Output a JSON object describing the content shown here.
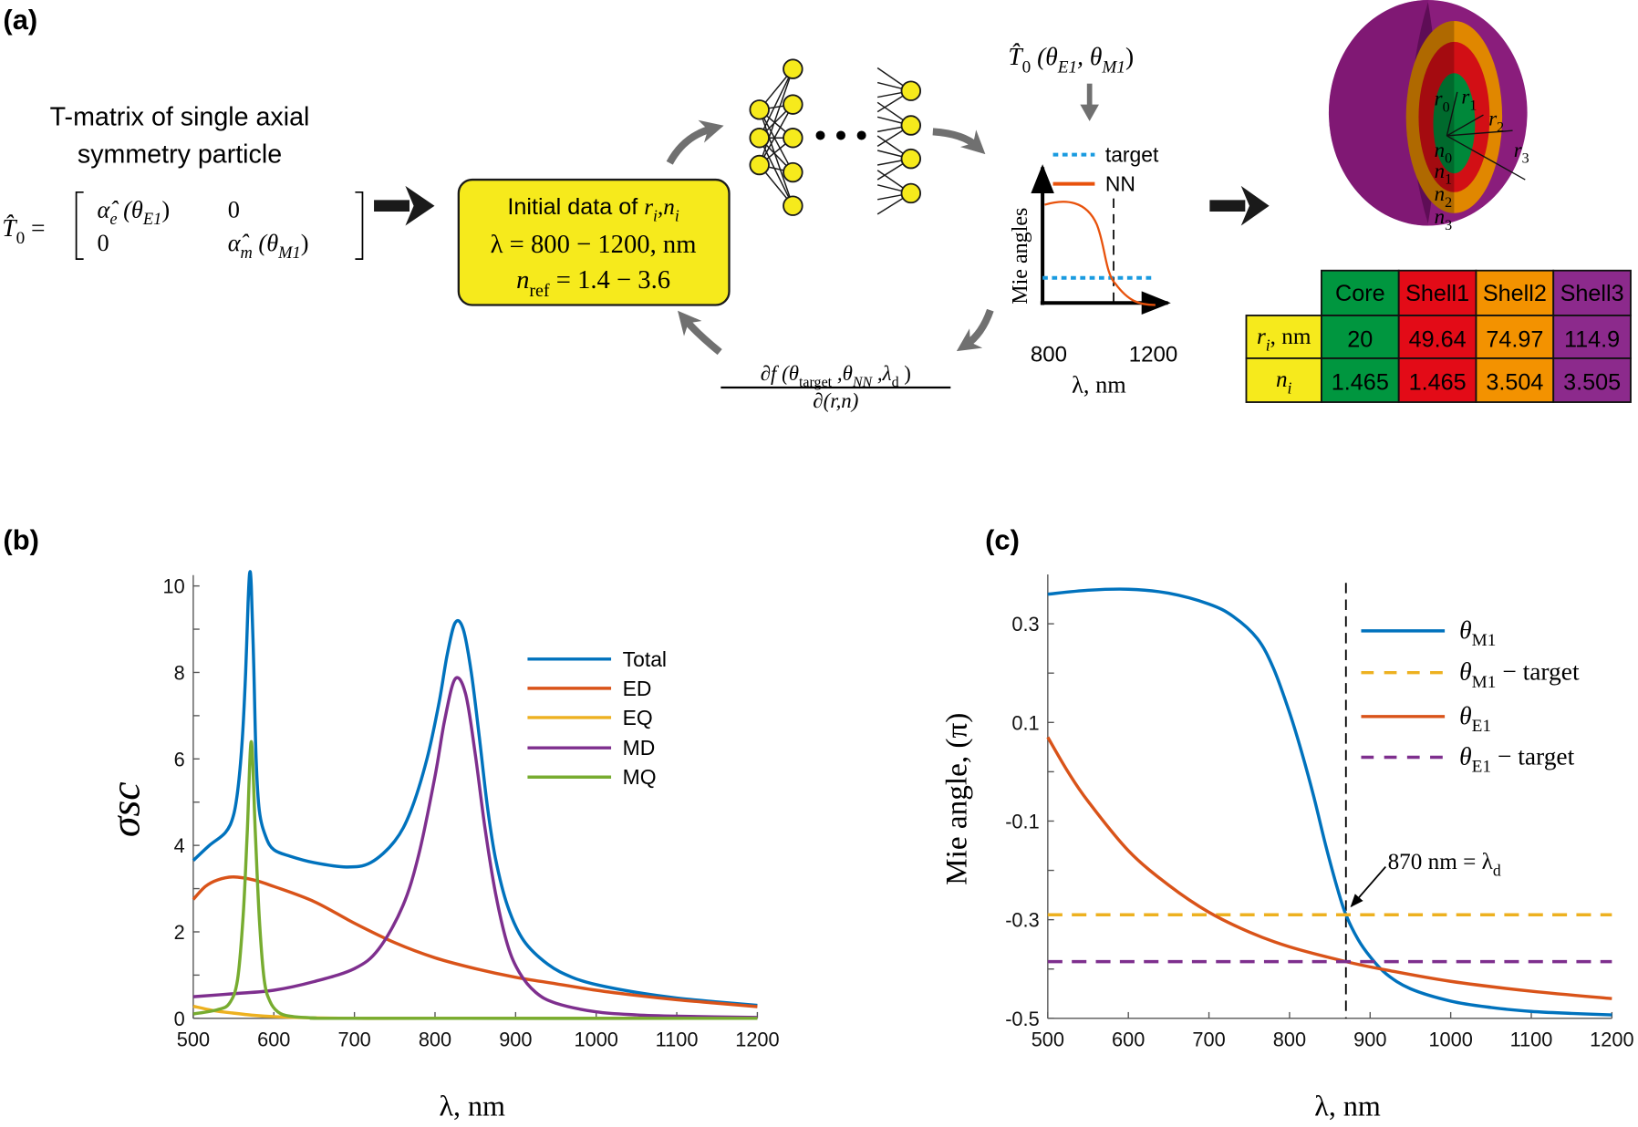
{
  "panel_labels": {
    "a": "(a)",
    "b": "(b)",
    "c": "(c)"
  },
  "panel_a": {
    "title_line1": "T-matrix of single axial",
    "title_line2": "symmetry particle",
    "matrix": {
      "lhs": [
        [
          "T̂",
          "it"
        ],
        [
          "0",
          "sub"
        ],
        [
          " =",
          "n"
        ]
      ],
      "a11": [
        [
          "α̂",
          "it"
        ],
        [
          "e",
          "subit"
        ],
        [
          " (θ",
          "it"
        ],
        [
          "E1",
          "subit"
        ],
        [
          ")",
          "n"
        ]
      ],
      "a12": [
        [
          "0",
          "n"
        ]
      ],
      "a21": [
        [
          "0",
          "n"
        ]
      ],
      "a22": [
        [
          "α̂",
          "it"
        ],
        [
          "m",
          "subit"
        ],
        [
          " (θ",
          "it"
        ],
        [
          "M1",
          "subit"
        ],
        [
          ")",
          "n"
        ]
      ]
    },
    "input_box": {
      "line1": [
        [
          "Initial data of ",
          "sans"
        ],
        [
          "r",
          "it"
        ],
        [
          "i",
          "subit"
        ],
        [
          ",",
          "n"
        ],
        [
          "n",
          "it"
        ],
        [
          "i",
          "subit"
        ]
      ],
      "line2": [
        [
          "λ = 800 − 1200, nm",
          "n"
        ]
      ],
      "line3": [
        [
          "n",
          "it"
        ],
        [
          "ref",
          "sub"
        ],
        [
          " = 1.4 − 3.6",
          "n"
        ]
      ],
      "color": "#f6ea1c"
    },
    "nn_ellipsis": "•••",
    "output_formula": [
      [
        "T̂",
        "it"
      ],
      [
        "0",
        "sub"
      ],
      [
        " (θ",
        "it"
      ],
      [
        "E1",
        "subit"
      ],
      [
        ", θ",
        "it"
      ],
      [
        "M1",
        "subit"
      ],
      [
        ")",
        "n"
      ]
    ],
    "gradient_numerator": [
      [
        "∂f (θ",
        "it"
      ],
      [
        "target",
        "sub"
      ],
      [
        " ,θ",
        "it"
      ],
      [
        "NN",
        "subit"
      ],
      [
        " ,λ",
        "it"
      ],
      [
        "d",
        "sub"
      ],
      [
        " )",
        "n"
      ]
    ],
    "gradient_denominator": [
      [
        "∂(r,n)",
        "it"
      ]
    ],
    "mini_plot": {
      "legend": [
        {
          "label": "target",
          "color": "#1a9be0",
          "style": "dotted"
        },
        {
          "label": "NN",
          "color": "#e8520c",
          "style": "solid"
        }
      ],
      "ylabel": "Mie angles",
      "x_ticks": [
        "800",
        "1200"
      ],
      "xlabel": "λ, nm"
    },
    "sphere_labels": {
      "r0": [
        [
          "r",
          "it"
        ],
        [
          "0",
          "sub"
        ]
      ],
      "r1": [
        [
          "r",
          "it"
        ],
        [
          "1",
          "sub"
        ]
      ],
      "r2": [
        [
          "r",
          "it"
        ],
        [
          "2",
          "sub"
        ]
      ],
      "r3": [
        [
          "r",
          "it"
        ],
        [
          "3",
          "sub"
        ]
      ],
      "n0": [
        [
          "n",
          "it"
        ],
        [
          "0",
          "sub"
        ]
      ],
      "n1": [
        [
          "n",
          "it"
        ],
        [
          "1",
          "sub"
        ]
      ],
      "n2": [
        [
          "n",
          "it"
        ],
        [
          "2",
          "sub"
        ]
      ],
      "n3": [
        [
          "n",
          "it"
        ],
        [
          "3",
          "sub"
        ]
      ]
    },
    "layer_colors": {
      "core": "#00963f",
      "shell1": "#e30b17",
      "shell2": "#f39200",
      "shell3": "#8c2a8c"
    },
    "table": {
      "headers": [
        "Core",
        "Shell1",
        "Shell2",
        "Shell3"
      ],
      "rows": [
        {
          "label": [
            [
              "r",
              "it"
            ],
            [
              "i",
              "subit"
            ],
            [
              ", nm",
              "n"
            ]
          ],
          "values": [
            "20",
            "49.64",
            "74.97",
            "114.9"
          ]
        },
        {
          "label": [
            [
              "n",
              "it"
            ],
            [
              "i",
              "subit"
            ]
          ],
          "values": [
            "1.465",
            "1.465",
            "3.504",
            "3.505"
          ]
        }
      ],
      "label_color": "#f6ea1c"
    }
  },
  "chart_data": [
    {
      "panel": "(b)",
      "type": "line",
      "xlabel": "λ, nm",
      "ylabel": "σsc",
      "xlim": [
        500,
        1200
      ],
      "ylim": [
        0,
        10
      ],
      "x_ticks": [
        500,
        600,
        700,
        800,
        900,
        1000,
        1100,
        1200
      ],
      "y_ticks": [
        0,
        2,
        4,
        6,
        8,
        10
      ],
      "grid": false,
      "legend_placement": "top-right",
      "series": [
        {
          "name": "Total",
          "color": "#0072bd",
          "x": [
            500,
            520,
            540,
            550,
            556,
            561,
            565,
            568,
            570,
            572,
            575,
            578,
            582,
            590,
            600,
            620,
            650,
            690,
            720,
            750,
            770,
            790,
            805,
            815,
            825,
            835,
            845,
            855,
            865,
            875,
            890,
            910,
            940,
            970,
            1000,
            1050,
            1100,
            1150,
            1200
          ],
          "y": [
            3.65,
            4.0,
            4.3,
            4.7,
            5.4,
            6.5,
            8.0,
            9.6,
            10.3,
            10.0,
            8.2,
            6.0,
            4.8,
            4.2,
            3.9,
            3.75,
            3.6,
            3.5,
            3.6,
            4.1,
            4.8,
            6.0,
            7.3,
            8.4,
            9.15,
            9.0,
            8.0,
            6.5,
            4.9,
            3.7,
            2.6,
            1.8,
            1.25,
            0.95,
            0.78,
            0.6,
            0.47,
            0.38,
            0.3
          ]
        },
        {
          "name": "ED",
          "color": "#d95319",
          "x": [
            500,
            515,
            530,
            550,
            575,
            600,
            650,
            700,
            750,
            800,
            850,
            900,
            950,
            1000,
            1050,
            1100,
            1150,
            1200
          ],
          "y": [
            2.75,
            3.05,
            3.2,
            3.27,
            3.2,
            3.05,
            2.7,
            2.2,
            1.75,
            1.4,
            1.15,
            0.95,
            0.8,
            0.65,
            0.53,
            0.43,
            0.35,
            0.27
          ]
        },
        {
          "name": "EQ",
          "color": "#edb120",
          "x": [
            500,
            525,
            550,
            575,
            600,
            650,
            700,
            800,
            1200
          ],
          "y": [
            0.28,
            0.18,
            0.12,
            0.07,
            0.04,
            0.01,
            0.0,
            0.0,
            0.0
          ]
        },
        {
          "name": "MD",
          "color": "#7e2f8e",
          "x": [
            500,
            550,
            600,
            650,
            700,
            730,
            760,
            780,
            800,
            812,
            825,
            838,
            850,
            862,
            875,
            890,
            905,
            925,
            950,
            1000,
            1050,
            1100,
            1200
          ],
          "y": [
            0.5,
            0.57,
            0.65,
            0.85,
            1.15,
            1.6,
            2.6,
            3.8,
            5.6,
            6.9,
            7.85,
            7.5,
            6.1,
            4.4,
            2.9,
            1.7,
            1.05,
            0.6,
            0.35,
            0.15,
            0.08,
            0.05,
            0.02
          ]
        },
        {
          "name": "MQ",
          "color": "#77ac30",
          "x": [
            500,
            530,
            545,
            555,
            562,
            567,
            572,
            577,
            582,
            588,
            595,
            605,
            620,
            650,
            700,
            1200
          ],
          "y": [
            0.1,
            0.2,
            0.35,
            0.9,
            2.4,
            4.3,
            6.4,
            4.3,
            2.3,
            0.9,
            0.4,
            0.15,
            0.05,
            0.01,
            0.0,
            0.0
          ]
        }
      ]
    },
    {
      "panel": "(c)",
      "type": "line",
      "xlabel": "λ, nm",
      "ylabel": "Mie angle, (π)",
      "xlim": [
        500,
        1200
      ],
      "ylim": [
        -0.5,
        0.4
      ],
      "x_ticks": [
        500,
        600,
        700,
        800,
        900,
        1000,
        1100,
        1200
      ],
      "y_ticks": [
        0.3,
        0.1,
        -0.1,
        -0.3,
        -0.5
      ],
      "grid": false,
      "legend_placement": "top-right",
      "series": [
        {
          "name": "θM1",
          "color": "#0072bd",
          "style": "solid",
          "x": [
            500,
            550,
            600,
            650,
            700,
            730,
            760,
            780,
            800,
            815,
            830,
            845,
            860,
            870,
            885,
            900,
            920,
            950,
            1000,
            1050,
            1100,
            1150,
            1200
          ],
          "y": [
            0.36,
            0.368,
            0.37,
            0.362,
            0.34,
            0.315,
            0.27,
            0.21,
            0.12,
            0.04,
            -0.05,
            -0.15,
            -0.24,
            -0.29,
            -0.34,
            -0.375,
            -0.41,
            -0.44,
            -0.465,
            -0.478,
            -0.486,
            -0.49,
            -0.493
          ]
        },
        {
          "name": "θM1 − target",
          "color": "#edb120",
          "style": "dashed",
          "x": [
            500,
            1200
          ],
          "y": [
            -0.29,
            -0.29
          ]
        },
        {
          "name": "θE1",
          "color": "#d95319",
          "style": "solid",
          "x": [
            500,
            525,
            550,
            600,
            650,
            700,
            750,
            800,
            870,
            920,
            1000,
            1100,
            1200
          ],
          "y": [
            0.07,
            0.0,
            -0.06,
            -0.16,
            -0.23,
            -0.285,
            -0.325,
            -0.355,
            -0.385,
            -0.402,
            -0.425,
            -0.445,
            -0.46
          ]
        },
        {
          "name": "θE1 − target",
          "color": "#7e2f8e",
          "style": "dashed",
          "x": [
            500,
            1200
          ],
          "y": [
            -0.385,
            -0.385
          ]
        }
      ],
      "vertical_marker": {
        "x": 870,
        "color": "#000000",
        "style": "dashed"
      },
      "annotation": {
        "text": "870 nm = λ",
        "subscript": "d",
        "points_to": [
          870,
          -0.29
        ]
      }
    }
  ]
}
